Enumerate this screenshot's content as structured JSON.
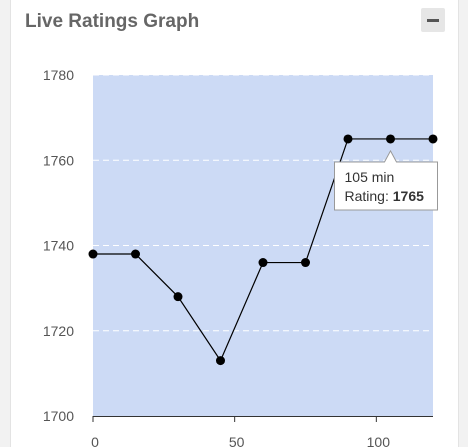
{
  "panel": {
    "title": "Live Ratings Graph",
    "collapse_icon": "minus-icon"
  },
  "chart_data": {
    "type": "line",
    "title": "",
    "xlabel": "",
    "ylabel": "",
    "x": [
      0,
      15,
      30,
      45,
      60,
      75,
      90,
      105,
      120
    ],
    "y": [
      1738,
      1738,
      1728,
      1713,
      1736,
      1736,
      1765,
      1765,
      1765
    ],
    "xlim": [
      0,
      120
    ],
    "ylim": [
      1700,
      1780
    ],
    "yticks": [
      1700,
      1720,
      1740,
      1760,
      1780
    ],
    "xticks": [
      0,
      50,
      100
    ],
    "grid": true,
    "plot_background": "#ccdaf5",
    "line_color": "#000000",
    "tooltip": {
      "x_text": "105 min",
      "rating_label": "Rating:",
      "rating_value": "1765",
      "point_index": 7
    }
  }
}
